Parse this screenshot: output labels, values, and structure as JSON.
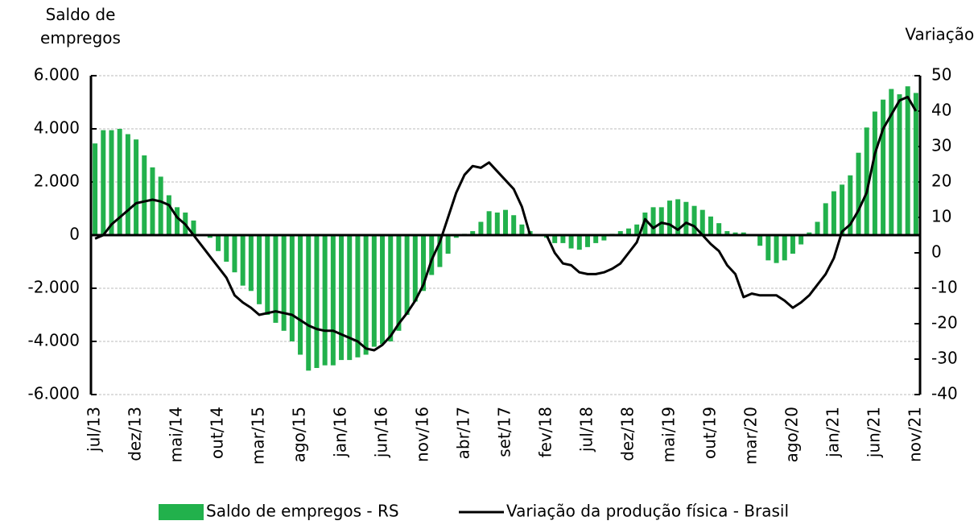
{
  "chart_data": {
    "type": "bar_line",
    "y_label": "Saldo de empregos",
    "y2_label": "Variação %",
    "categories": [
      "jul/13",
      null,
      null,
      null,
      null,
      "dez/13",
      null,
      null,
      null,
      null,
      "mai/14",
      null,
      null,
      null,
      null,
      "out/14",
      null,
      null,
      null,
      null,
      "mar/15",
      null,
      null,
      null,
      null,
      "ago/15",
      null,
      null,
      null,
      null,
      "jan/16",
      null,
      null,
      null,
      null,
      "jun/16",
      null,
      null,
      null,
      null,
      "nov/16",
      null,
      null,
      null,
      null,
      "abr/17",
      null,
      null,
      null,
      null,
      "set/17",
      null,
      null,
      null,
      null,
      "fev/18",
      null,
      null,
      null,
      null,
      "jul/18",
      null,
      null,
      null,
      null,
      "dez/18",
      null,
      null,
      null,
      null,
      "mai/19",
      null,
      null,
      null,
      null,
      "out/19",
      null,
      null,
      null,
      null,
      "mar/20",
      null,
      null,
      null,
      null,
      "ago/20",
      null,
      null,
      null,
      null,
      "jan/21",
      null,
      null,
      null,
      null,
      "jun/21",
      null,
      null,
      null,
      null,
      "nov/21"
    ],
    "series": [
      {
        "name": "Saldo de empregos - RS",
        "type": "bar",
        "color": "#22b14c",
        "axis": "y",
        "values": [
          3450,
          3950,
          3950,
          4000,
          3800,
          3600,
          3000,
          2550,
          2200,
          1500,
          1050,
          850,
          550,
          0,
          -100,
          -600,
          -1000,
          -1400,
          -1900,
          -2100,
          -2600,
          -3000,
          -3300,
          -3600,
          -4000,
          -4500,
          -5100,
          -5000,
          -4900,
          -4900,
          -4700,
          -4700,
          -4600,
          -4500,
          -4200,
          -4100,
          -4000,
          -3600,
          -3000,
          -2500,
          -2100,
          -1500,
          -1200,
          -700,
          -100,
          50,
          150,
          500,
          900,
          850,
          950,
          750,
          400,
          150,
          0,
          -100,
          -300,
          -300,
          -500,
          -550,
          -450,
          -300,
          -200,
          50,
          150,
          250,
          400,
          850,
          1050,
          1050,
          1300,
          1350,
          1250,
          1100,
          950,
          700,
          450,
          150,
          100,
          100,
          0,
          -400,
          -950,
          -1050,
          -950,
          -700,
          -350,
          100,
          500,
          1200,
          1650,
          1900,
          2250,
          3100,
          4050,
          4650,
          5100,
          5500,
          5300,
          5600,
          5350
        ]
      },
      {
        "name": "Variação da produção física - Brasil",
        "type": "line",
        "color": "#000000",
        "axis": "y2",
        "values": [
          4,
          5,
          8,
          10,
          12,
          14,
          14.5,
          15,
          14.5,
          13.5,
          10,
          8,
          5,
          2,
          -1,
          -4,
          -7,
          -12,
          -14,
          -15.5,
          -17.5,
          -17,
          -16.5,
          -17,
          -17.5,
          -19,
          -20.5,
          -21.5,
          -22,
          -22,
          -23,
          -24,
          -25,
          -27,
          -27.5,
          -26,
          -23.5,
          -20,
          -17,
          -13.5,
          -9,
          -2,
          3,
          10,
          17,
          22,
          24.5,
          24,
          25.5,
          23,
          20.5,
          18,
          13,
          5,
          5,
          5,
          0,
          -3,
          -3.5,
          -5.5,
          -6,
          -6,
          -5.5,
          -4.5,
          -3,
          0,
          3,
          9.5,
          7,
          8.5,
          8,
          6.5,
          8.5,
          7.5,
          5,
          2.5,
          0.5,
          -3.5,
          -6,
          -12.5,
          -11.5,
          -12,
          -12,
          -12,
          -13.5,
          -15.5,
          -14,
          -12,
          -9,
          -6,
          -1.5,
          6,
          8,
          12,
          17,
          28,
          35,
          39,
          43,
          44,
          40
        ]
      }
    ],
    "ylim": [
      -6000,
      6000
    ],
    "yticks": [
      {
        "value": -6000,
        "label": "-6.000"
      },
      {
        "value": -4000,
        "label": "-4.000"
      },
      {
        "value": -2000,
        "label": "-2.000"
      },
      0,
      {
        "value": 2000,
        "label": "2.000"
      },
      {
        "value": 4000,
        "label": "4.000"
      },
      {
        "value": 6000,
        "label": "6.000"
      }
    ],
    "y2lim": [
      -40,
      50
    ],
    "y2ticks": [
      -40,
      -30,
      -20,
      -10,
      0,
      10,
      20,
      30,
      40,
      50
    ],
    "grid": true,
    "legend": "bottom"
  }
}
